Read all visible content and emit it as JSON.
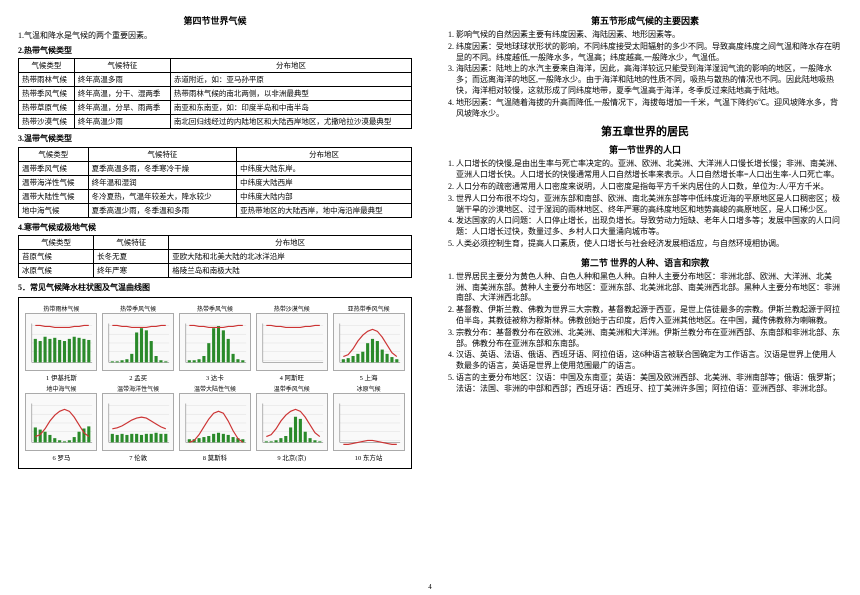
{
  "left": {
    "title": "第四节世界气候",
    "intro": "1.气温和降水是气候的两个重要因素。",
    "sub1": "2.热带气候类型",
    "table1": {
      "headers": [
        "气候类型",
        "气候特征",
        "分布地区"
      ],
      "rows": [
        [
          "热带雨林气候",
          "终年高温多雨",
          "赤道附近，如：亚马孙平原"
        ],
        [
          "热带季风气候",
          "终年高温，分干、湿两季",
          "热带雨林气候的南北两侧，以非洲最典型"
        ],
        [
          "热带草原气候",
          "终年高温，分旱、雨两季",
          "南亚和东南亚，如：印度半岛和中南半岛"
        ],
        [
          "热带沙漠气候",
          "终年高温少雨",
          "南北回归线经过的内陆地区和大陆西岸地区，尤撒哈拉沙漠最典型"
        ]
      ]
    },
    "sub2": "3.温带气候类型",
    "table2": {
      "headers": [
        "气候类型",
        "气候特征",
        "分布地区"
      ],
      "rows": [
        [
          "温带季风气候",
          "夏季高温多雨，冬季寒冷干燥",
          "中纬度大陆东岸。"
        ],
        [
          "温带海洋性气候",
          "终年温和湿润",
          "中纬度大陆西岸"
        ],
        [
          "温带大陆性气候",
          "冬冷夏热，气温年较差大，降水较少",
          "中纬度大陆内部"
        ],
        [
          "地中海气候",
          "夏季高温少雨，冬季温和多雨",
          "亚热带地区的大陆西岸，地中海沿岸最典型"
        ]
      ]
    },
    "sub3": "4.寒带气候或极地气候",
    "table3": {
      "headers": [
        "气候类型",
        "气候特征",
        "分布地区"
      ],
      "rows": [
        [
          "苔原气候",
          "长冬无夏",
          "亚欧大陆和北美大陆的北冰洋沿岸"
        ],
        [
          "冰原气候",
          "终年严寒",
          "格陵兰岛和南极大陆"
        ]
      ]
    },
    "sub4": "5．常见气候降水柱状图及气温曲线图",
    "charts": {
      "row1": [
        {
          "id": "c1",
          "label": "1 伊基托斯",
          "title": "热带雨林气候",
          "type": "bar-high-flat",
          "temp": "high-flat"
        },
        {
          "id": "c2",
          "label": "2 孟买",
          "title": "热带季风气候",
          "type": "bar-summer-peak",
          "temp": "high-flat"
        },
        {
          "id": "c3",
          "label": "3 达卡",
          "title": "热带季风气候",
          "type": "bar-summer-peak2",
          "temp": "high-flat"
        },
        {
          "id": "c4",
          "label": "4 阿斯旺",
          "title": "热带沙漠气候",
          "type": "bar-none",
          "temp": "high-flat"
        },
        {
          "id": "c5",
          "label": "5 上海",
          "title": "亚热带季风气候",
          "type": "bar-summer",
          "temp": "curve-normal"
        }
      ],
      "row2": [
        {
          "id": "c6",
          "label": "6 罗马",
          "title": "地中海气候",
          "type": "bar-winter",
          "temp": "curve-normal"
        },
        {
          "id": "c7",
          "label": "7 伦敦",
          "title": "温带海洋性气候",
          "type": "bar-even",
          "temp": "curve-mild"
        },
        {
          "id": "c8",
          "label": "8 莫斯科",
          "title": "温带大陆性气候",
          "type": "bar-low",
          "temp": "curve-cold"
        },
        {
          "id": "c9",
          "label": "9 北京(京)",
          "title": "温带季风气候",
          "type": "bar-summer2",
          "temp": "curve-normal"
        },
        {
          "id": "c10",
          "label": "10 东方站",
          "title": "冰原气候",
          "type": "bar-none",
          "temp": "curve-verycold"
        }
      ]
    }
  },
  "right": {
    "title1": "第五节形成气候的主要因素",
    "items1": [
      "1. 影响气候的自然因素主要有纬度因素、海陆因素、地形因素等。",
      "2. 纬度因素：受地球球状形状的影响，不同纬度接受太阳辐射的多少不同。导致高度纬度之间气温和降水存在明显的不同。纬度越低,一般降水多，气温高；纬度越高,一般降水少，气温低。",
      "3. 海陆因素：陆地上的水汽主要来自海洋，因此，高海洋较远只能受到海洋湿润气流的影响的地区，一般降水多；而远离海洋的地区,一般降水少。由于海洋和陆地的性质不同，吸热与散热的情况也不同。因此陆地吸热快，海洋相对较慢，这就形成了同纬度地带，夏季气温高于海洋，冬季反过来陆地高于陆地。",
      "4. 地形因素：气温随着海拔的升高而降低,一般情况下，海拔每增加一千米，气温下降约6℃。迎风坡降水多，背风坡降水少。"
    ],
    "chapter": "第五章世界的居民",
    "title2": "第一节世界的人口",
    "items2": [
      "1. 人口增长的快慢,是由出生率与死亡率决定的。亚洲、欧洲、北美洲、大洋洲人口慢长增长慢；非洲、南美洲、亚洲人口增长快。人口增长的快慢通常用人口自然增长率来表示。人口自然增长率=人口出生率-人口死亡率。",
      "2. 人口分布的疏密通常用人口密度来说明，人口密度是指每平方千米内居住的人口数，单位为:人/平方千米。",
      "3. 世界人口分布很不均匀，亚洲东部和南部、欧洲、南北美洲东部等中低纬度近海的平原地区是人口稠密区；极端干旱的沙漠地区、过于湿润的雨林地区、终年严寒的高纬度地区和地势高峻的高原地区，是人口稀少区。",
      "4. 发达国家的人口问题：人口停止增长，出现负增长。导致劳动力短缺、老年人口增多等；发展中国家的人口问题：人口增长过快，数量过多、乡村人口大量涌向城市等。",
      "5. 人类必须控制生育，提高人口素质，使人口增长与社会经济发展相适应，与自然环境相协调。"
    ],
    "title3": "第二节 世界的人种、语言和宗教",
    "items3": [
      "1. 世界居民主要分为黄色人种、白色人种和黑色人种。白种人主要分布地区：非洲北部、欧洲、大洋洲、北美洲、南美洲东部。黄种人主要分布地区：亚洲东部、北美洲北部、南美洲西北部。黑种人主要分布地区：非洲南部、大洋洲西北部。",
      "2. 基督教、伊斯兰教、佛教为世界三大宗教，基督教起源于西亚，是世上信徒最多的宗教。伊斯兰教起源于阿拉伯半岛，其教徒被称为穆斯林。佛教创始于古印度，后传入亚洲其他地区。在中国，藏传佛教称为喇嘛教。",
      "3. 宗教分布：基督教分布在欧洲、北美洲、南美洲和大洋洲。伊斯兰教分布在亚洲西部、东南部和非洲北部、东部。佛教分布在亚洲东部和东南部。",
      "4. 汉语、英语、法语、俄语、西班牙语、阿拉伯语，这6种语言被联合国确定为工作语言。汉语是世界上使用人数最多的语言，英语是世界上使用范围最广的语言。",
      "5. 语言的主要分布地区：汉语：中国及东南亚；英语：美国及欧洲西部、北美洲、非洲南部等；俄语：俄罗斯；法语：法国、非洲的中部和西部；西班牙语：西班牙、拉丁美洲许多国；阿拉伯语：亚洲西部、非洲北部。"
    ]
  },
  "page_num": "4",
  "colors": {
    "bar": "#2a8a2a",
    "curve": "#cc3333",
    "grid": "#cccccc"
  }
}
